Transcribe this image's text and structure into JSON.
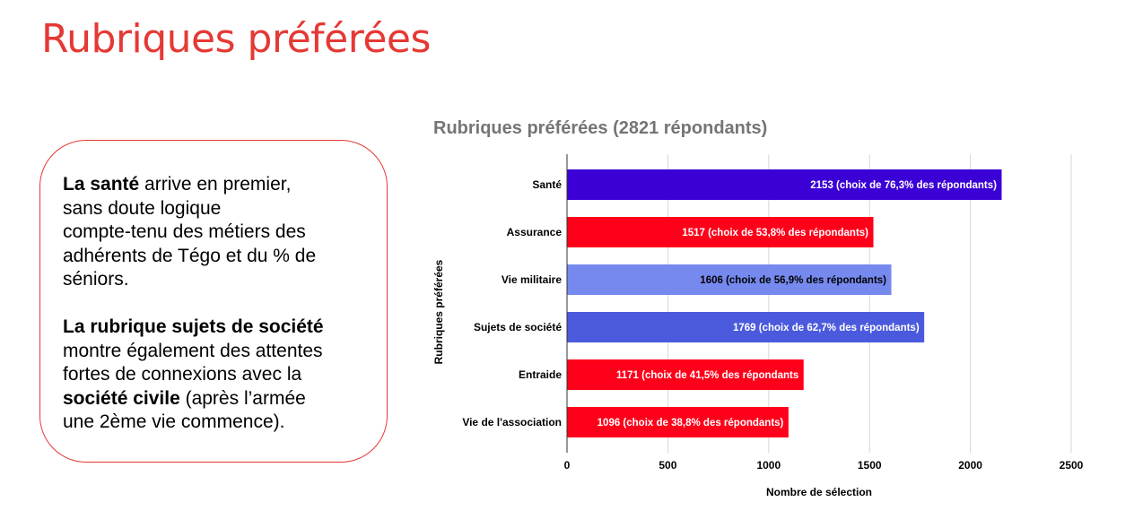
{
  "page": {
    "title": "Rubriques préférées",
    "accent_color": "#e53935"
  },
  "text_box": {
    "para1": {
      "bold": "La santé",
      "rest_line1": " arrive en premier,",
      "line2": "sans doute logique",
      "line3": "compte-tenu des métiers des",
      "line4": "adhérents de Tégo et du % de",
      "line5": "séniors."
    },
    "para2": {
      "bold1": "La rubrique sujets de société",
      "line2": "montre également des attentes",
      "line3": "fortes de connexions avec la",
      "bold2": "société civile",
      "rest_line4": " (après l’armée",
      "line5": "une 2ème vie commence)."
    }
  },
  "chart_data": {
    "type": "bar",
    "orientation": "horizontal",
    "title": "Rubriques préférées (2821 répondants)",
    "xlabel": "Nombre de sélection",
    "ylabel": "Rubriques préférées",
    "xlim": [
      0,
      2500
    ],
    "xticks": [
      0,
      500,
      1000,
      1500,
      2000,
      2500
    ],
    "grid": true,
    "categories": [
      "Santé",
      "Assurance",
      "Vie militaire",
      "Sujets de société",
      "Entraide",
      "Vie de l'association"
    ],
    "values": [
      2153,
      1517,
      1606,
      1769,
      1171,
      1096
    ],
    "data_labels": [
      "2153 (choix de 76,3% des répondants)",
      "1517 (choix de 53,8% des répondants)",
      "1606 (choix de 56,9% des répondants)",
      "1769 (choix de 62,7% des répondants)",
      "1171 (choix de 41,5% des répondants",
      "1096 (choix de 38,8% des répondants)"
    ],
    "colors": [
      "#3b00d6",
      "#ff001a",
      "#7689ef",
      "#4b5add",
      "#ff001a",
      "#ff001a"
    ],
    "label_colors": [
      "#ffffff",
      "#ffffff",
      "#000000",
      "#ffffff",
      "#ffffff",
      "#ffffff"
    ]
  }
}
